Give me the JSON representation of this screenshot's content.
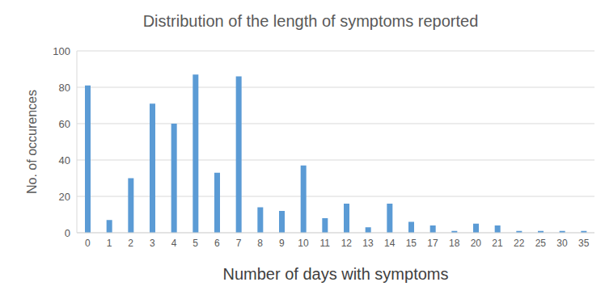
{
  "chart_data": {
    "type": "bar",
    "title": "Distribution of the length of symptoms reported",
    "x_label": "Number of days with symptoms",
    "y_label": "No. of occurences",
    "categories": [
      "0",
      "1",
      "2",
      "3",
      "4",
      "5",
      "6",
      "7",
      "8",
      "9",
      "10",
      "11",
      "12",
      "13",
      "14",
      "15",
      "17",
      "18",
      "20",
      "21",
      "22",
      "25",
      "30",
      "35"
    ],
    "values": [
      81,
      7,
      30,
      71,
      60,
      87,
      33,
      86,
      14,
      12,
      37,
      8,
      16,
      3,
      16,
      6,
      4,
      1,
      5,
      4,
      1,
      1,
      1,
      1
    ],
    "color": "#5b9bd5",
    "ylim": [
      0,
      100
    ],
    "yticks": [
      0,
      20,
      40,
      60,
      80,
      100
    ],
    "grid": true
  }
}
